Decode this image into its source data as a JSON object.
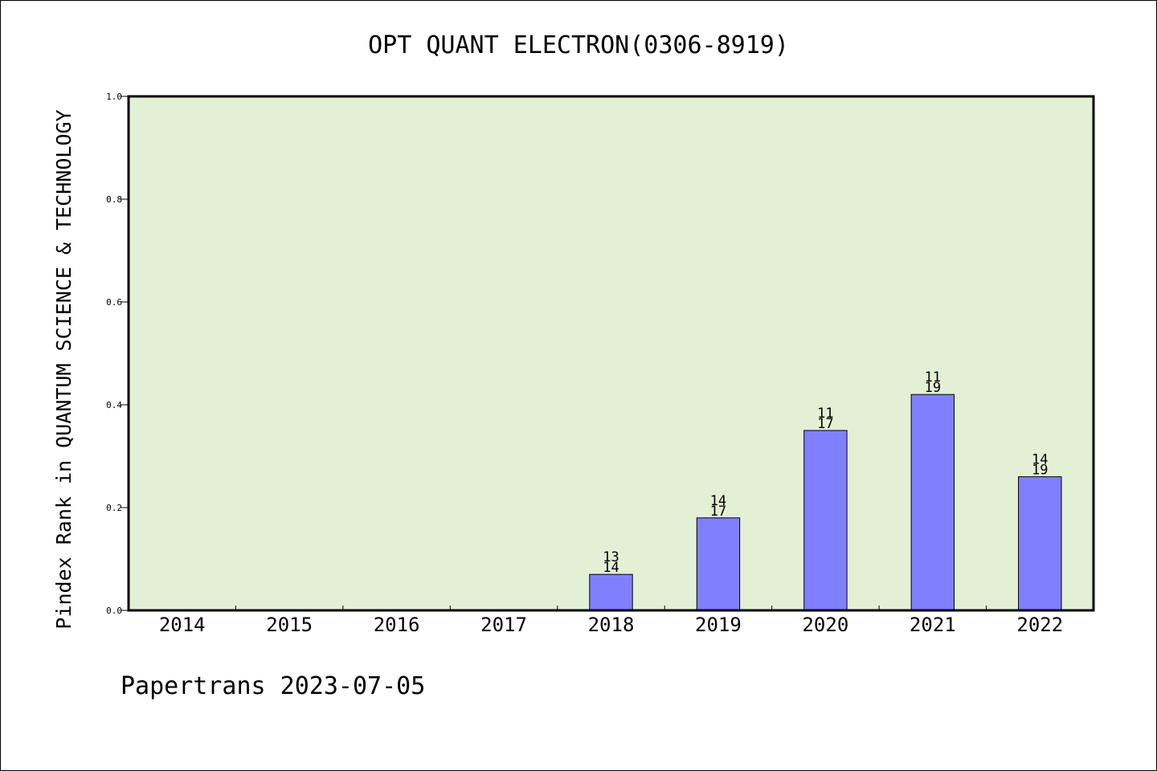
{
  "chart_data": {
    "type": "bar",
    "title": "OPT QUANT ELECTRON(0306-8919)",
    "ylabel": "Pindex Rank in QUANTUM SCIENCE & TECHNOLOGY",
    "xlabel": "",
    "categories": [
      "2014",
      "2015",
      "2016",
      "2017",
      "2018",
      "2019",
      "2020",
      "2021",
      "2022"
    ],
    "values": [
      null,
      null,
      null,
      null,
      0.07,
      0.18,
      0.35,
      0.42,
      0.26
    ],
    "bar_labels": [
      {
        "top": "",
        "bottom": ""
      },
      {
        "top": "",
        "bottom": ""
      },
      {
        "top": "",
        "bottom": ""
      },
      {
        "top": "",
        "bottom": ""
      },
      {
        "top": "13",
        "bottom": "14"
      },
      {
        "top": "14",
        "bottom": "17"
      },
      {
        "top": "11",
        "bottom": "17"
      },
      {
        "top": "11",
        "bottom": "19"
      },
      {
        "top": "14",
        "bottom": "19"
      }
    ],
    "ylim": [
      0,
      1
    ],
    "yticks": [
      "0.0",
      "0.2",
      "0.4",
      "0.6",
      "0.8",
      "1.0"
    ],
    "grid": false,
    "legend": "none",
    "colors": {
      "plot_background": "#e2f0d6",
      "bar_fill": "#8080ff",
      "bar_stroke": "#000000"
    }
  },
  "footer": "Papertrans 2023-07-05"
}
